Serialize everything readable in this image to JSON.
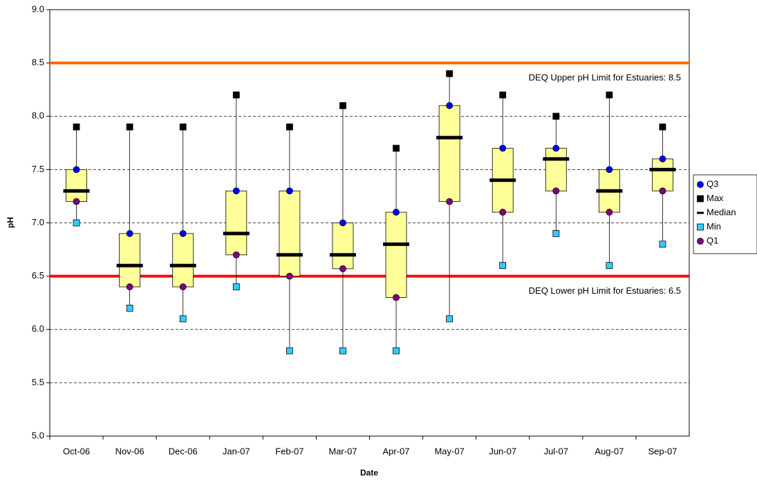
{
  "chart_data": {
    "type": "box",
    "x_label": "Date",
    "y_label": "pH",
    "categories": [
      "Oct-06",
      "Nov-06",
      "Dec-06",
      "Jan-07",
      "Feb-07",
      "Mar-07",
      "Apr-07",
      "May-07",
      "Jun-07",
      "Jul-07",
      "Aug-07",
      "Sep-07"
    ],
    "series": [
      {
        "name": "Q3",
        "color": "#0000ff",
        "marker": "circle",
        "values": [
          7.5,
          6.9,
          6.9,
          7.3,
          7.3,
          7.0,
          7.1,
          8.1,
          7.7,
          7.7,
          7.5,
          7.6
        ]
      },
      {
        "name": "Max",
        "color": "#000000",
        "marker": "square",
        "values": [
          7.9,
          7.9,
          7.9,
          8.2,
          7.9,
          8.1,
          7.7,
          8.4,
          8.2,
          8.0,
          8.2,
          7.9
        ]
      },
      {
        "name": "Median",
        "color": "#000000",
        "marker": "dash",
        "values": [
          7.3,
          6.6,
          6.6,
          6.9,
          6.7,
          6.7,
          6.8,
          7.8,
          7.4,
          7.6,
          7.3,
          7.5
        ]
      },
      {
        "name": "Min",
        "color": "#33ccff",
        "marker": "square",
        "values": [
          7.0,
          6.2,
          6.1,
          6.4,
          5.8,
          5.8,
          5.8,
          6.1,
          6.6,
          6.9,
          6.6,
          6.8
        ]
      },
      {
        "name": "Q1",
        "color": "#800080",
        "marker": "circle",
        "values": [
          7.2,
          6.4,
          6.4,
          6.7,
          6.5,
          6.57,
          6.3,
          7.2,
          7.1,
          7.3,
          7.1,
          7.3
        ]
      }
    ],
    "box_color": "#ffff99",
    "reference_lines": [
      {
        "value": 8.5,
        "label": "DEQ Upper pH Limit for Estuaries: 8.5",
        "color": "#ff6600"
      },
      {
        "value": 6.5,
        "label": "DEQ Lower pH Limit for Estuaries: 6.5",
        "color": "#ff0000"
      }
    ],
    "ylim": [
      5,
      9
    ],
    "yticks": [
      {
        "value": 5,
        "label": "5.0"
      },
      5.5,
      {
        "value": 6,
        "label": "6.0"
      },
      6.5,
      {
        "value": 7,
        "label": "7.0"
      },
      7.5,
      {
        "value": 8,
        "label": "8.0"
      },
      8.5,
      {
        "value": 9,
        "label": "9.0"
      }
    ],
    "grid": true,
    "legend": "right"
  }
}
